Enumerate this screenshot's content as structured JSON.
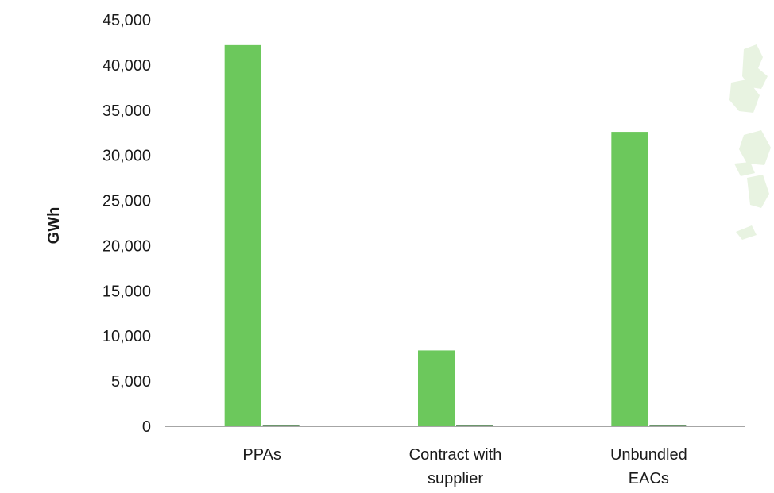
{
  "chart_data": {
    "type": "bar",
    "title": "",
    "xlabel": "",
    "ylabel": "GWh",
    "ylim": [
      0,
      45000
    ],
    "yticks": [
      0,
      5000,
      10000,
      15000,
      20000,
      25000,
      30000,
      35000,
      40000,
      45000
    ],
    "ytick_labels": [
      "0",
      "5,000",
      "10,000",
      "15,000",
      "20,000",
      "25,000",
      "30,000",
      "35,000",
      "40,000",
      "45,000"
    ],
    "grid": false,
    "legend": "none",
    "categories": [
      [
        "PPAs"
      ],
      [
        "Contract with",
        "supplier"
      ],
      [
        "Unbundled",
        "EACs"
      ]
    ],
    "series": [
      {
        "color": "#6cc85c",
        "values": [
          42200,
          8400,
          32600
        ]
      },
      {
        "color": "#2e6b2e",
        "values": [
          150,
          150,
          150
        ]
      }
    ]
  },
  "colors": {
    "axis": "#a6a6a6",
    "decor": "#e8f3e1"
  }
}
